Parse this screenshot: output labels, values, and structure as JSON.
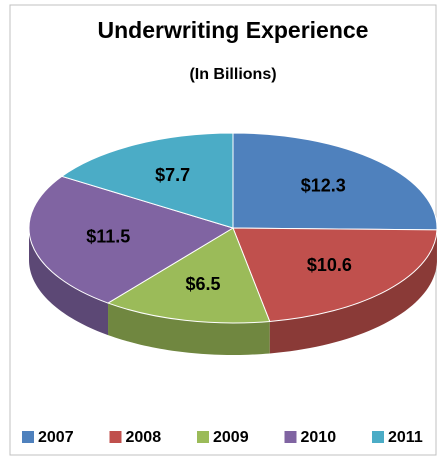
{
  "chart_data": {
    "type": "pie",
    "title": "Underwriting Experience",
    "subtitle": "(In Billions)",
    "categories": [
      "2007",
      "2008",
      "2009",
      "2010",
      "2011"
    ],
    "values": [
      12.3,
      10.6,
      6.5,
      11.5,
      7.7
    ],
    "value_labels": [
      "$12.3",
      "$10.6",
      "$6.5",
      "$11.5",
      "$7.7"
    ],
    "colors": [
      "#4f81bd",
      "#c0504d",
      "#9bbb59",
      "#8064a2",
      "#4bacc6"
    ],
    "legend": "bottom"
  }
}
